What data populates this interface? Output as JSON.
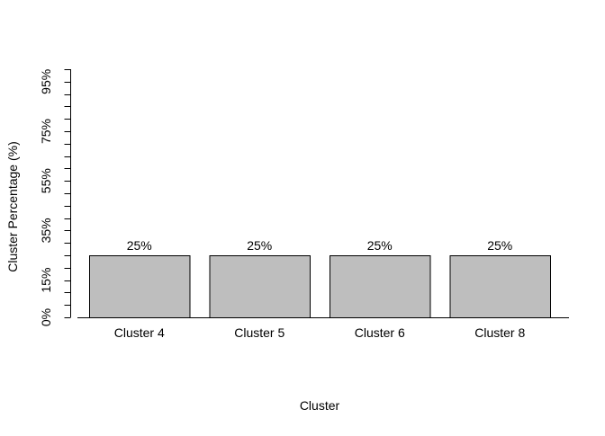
{
  "chart_data": {
    "type": "bar",
    "title": "",
    "xlabel": "Cluster",
    "ylabel": "Cluster Percentage (%)",
    "categories": [
      "Cluster 4",
      "Cluster 5",
      "Cluster 6",
      "Cluster 8"
    ],
    "values": [
      25,
      25,
      25,
      25
    ],
    "data_labels": [
      "25%",
      "25%",
      "25%",
      "25%"
    ],
    "ylim": [
      0,
      100
    ],
    "y_tick_step": 5,
    "y_tick_labels": [
      {
        "value": 0,
        "label": "0%"
      },
      {
        "value": 15,
        "label": "15%"
      },
      {
        "value": 35,
        "label": "35%"
      },
      {
        "value": 55,
        "label": "55%"
      },
      {
        "value": 75,
        "label": "75%"
      },
      {
        "value": 95,
        "label": "95%"
      }
    ],
    "grid": false,
    "bar_color": "#bebebe",
    "bar_border_color": "#000000"
  }
}
